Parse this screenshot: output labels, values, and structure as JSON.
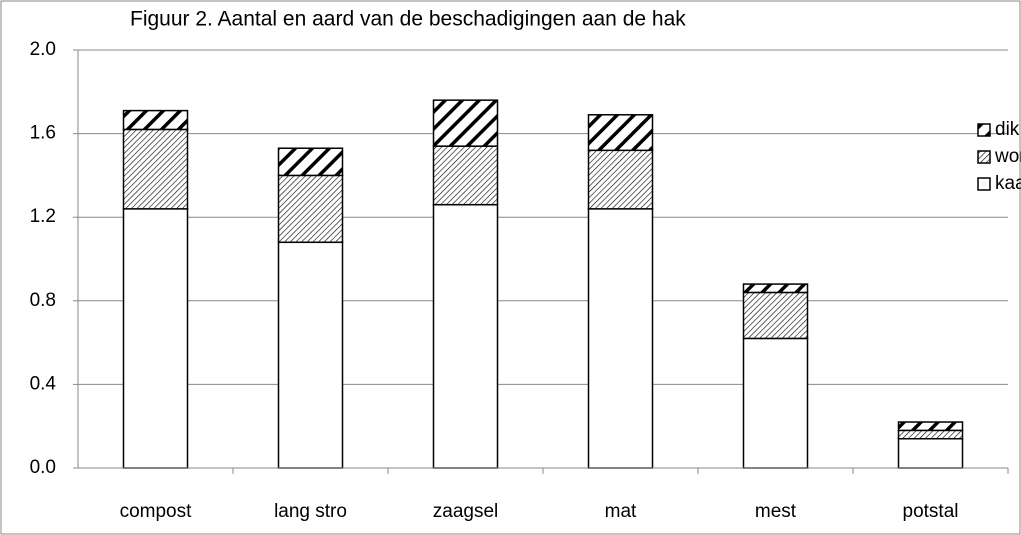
{
  "chart_data": {
    "type": "stacked-bar",
    "title": "Figuur 2. Aantal en aard van de beschadigingen aan de hak",
    "categories": [
      "compost",
      "lang stro",
      "zaagsel",
      "mat",
      "mest",
      "potstal"
    ],
    "series": [
      {
        "name": "kaal",
        "color": "#000000",
        "pattern": "none",
        "values": [
          1.24,
          1.08,
          1.26,
          1.24,
          0.62,
          0.14
        ]
      },
      {
        "name": "wond",
        "color": "#000000",
        "pattern": "fine-hatch",
        "values": [
          0.38,
          0.32,
          0.28,
          0.28,
          0.22,
          0.04
        ]
      },
      {
        "name": "dik",
        "color": "#000000",
        "pattern": "coarse-hatch",
        "values": [
          0.09,
          0.13,
          0.22,
          0.17,
          0.04,
          0.04
        ]
      }
    ],
    "ylim": [
      0,
      2
    ],
    "yticks": [
      {
        "value": 0,
        "label": "0.0"
      },
      0.4,
      0.8,
      1.2,
      1.6,
      {
        "value": 2,
        "label": "2.0"
      }
    ],
    "grid": true,
    "legend": "right"
  }
}
